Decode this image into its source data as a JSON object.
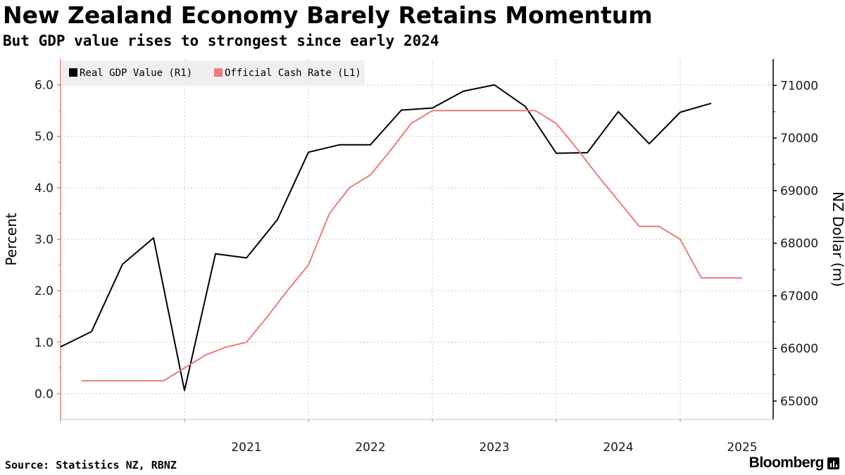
{
  "header": {
    "title": "New Zealand Economy Barely Retains Momentum",
    "subtitle": "But GDP value rises to strongest since early 2024"
  },
  "footer": {
    "source": "Source: Statistics NZ, RBNZ",
    "brand": "Bloomberg"
  },
  "colors": {
    "gdp": "#000000",
    "ocr": "#f07a78",
    "grid": "#c8c8c8",
    "legend_bg": "#efefef"
  },
  "chart_data": {
    "type": "line",
    "title": "New Zealand Economy Barely Retains Momentum",
    "subtitle": "But GDP value rises to strongest since early 2024",
    "xlabel": "",
    "x_tick_labels": [
      "2021",
      "2022",
      "2023",
      "2024",
      "2025"
    ],
    "x_range": [
      2020.0,
      2025.75
    ],
    "left_axis": {
      "label": "Percent",
      "ylim": [
        -0.5,
        6.5
      ],
      "ticks": [
        0,
        1,
        2,
        3,
        4,
        5,
        6
      ],
      "tick_labels": [
        "0.0",
        "1.0",
        "2.0",
        "3.0",
        "4.0",
        "5.0",
        "6.0"
      ]
    },
    "right_axis": {
      "label": "NZ Dollar (m)",
      "ylim": [
        64650,
        71500
      ],
      "ticks": [
        65000,
        66000,
        67000,
        68000,
        69000,
        70000,
        71000
      ],
      "tick_labels": [
        "65000",
        "66000",
        "67000",
        "68000",
        "69000",
        "70000",
        "71000"
      ]
    },
    "legend": {
      "position": "top-left",
      "entries": [
        "Real GDP Value (R1)",
        "Official Cash Rate (L1)"
      ]
    },
    "series": [
      {
        "name": "Real GDP Value (R1)",
        "axis": "right",
        "color": "#000000",
        "x": [
          2020.0,
          2020.25,
          2020.5,
          2020.75,
          2021.0,
          2021.25,
          2021.5,
          2021.75,
          2022.0,
          2022.25,
          2022.5,
          2022.75,
          2023.0,
          2023.25,
          2023.5,
          2023.75,
          2024.0,
          2024.25,
          2024.5,
          2024.75,
          2025.0,
          2025.25,
          2025.5
        ],
        "values": [
          66030,
          66320,
          67600,
          68100,
          65200,
          67800,
          67720,
          68450,
          69730,
          69870,
          69870,
          70530,
          70570,
          70890,
          71010,
          70600,
          69710,
          69720,
          70500,
          69890,
          70490,
          70660,
          null
        ]
      },
      {
        "name": "Official Cash Rate (L1)",
        "axis": "left",
        "color": "#f07a78",
        "x": [
          2020.17,
          2020.33,
          2020.5,
          2020.67,
          2020.83,
          2021.0,
          2021.17,
          2021.33,
          2021.5,
          2021.67,
          2021.83,
          2022.0,
          2022.17,
          2022.33,
          2022.5,
          2022.67,
          2022.83,
          2023.0,
          2023.17,
          2023.33,
          2023.5,
          2023.67,
          2023.83,
          2024.0,
          2024.17,
          2024.33,
          2024.5,
          2024.67,
          2024.83,
          2025.0,
          2025.17,
          2025.33,
          2025.5
        ],
        "values": [
          0.25,
          0.25,
          0.25,
          0.25,
          0.25,
          0.5,
          0.75,
          0.9,
          1.0,
          1.5,
          2.0,
          2.5,
          3.5,
          4.0,
          4.25,
          4.75,
          5.25,
          5.5,
          5.5,
          5.5,
          5.5,
          5.5,
          5.5,
          5.25,
          4.75,
          4.25,
          3.75,
          3.25,
          3.25,
          3.0,
          2.25,
          2.25,
          2.25
        ]
      }
    ]
  }
}
